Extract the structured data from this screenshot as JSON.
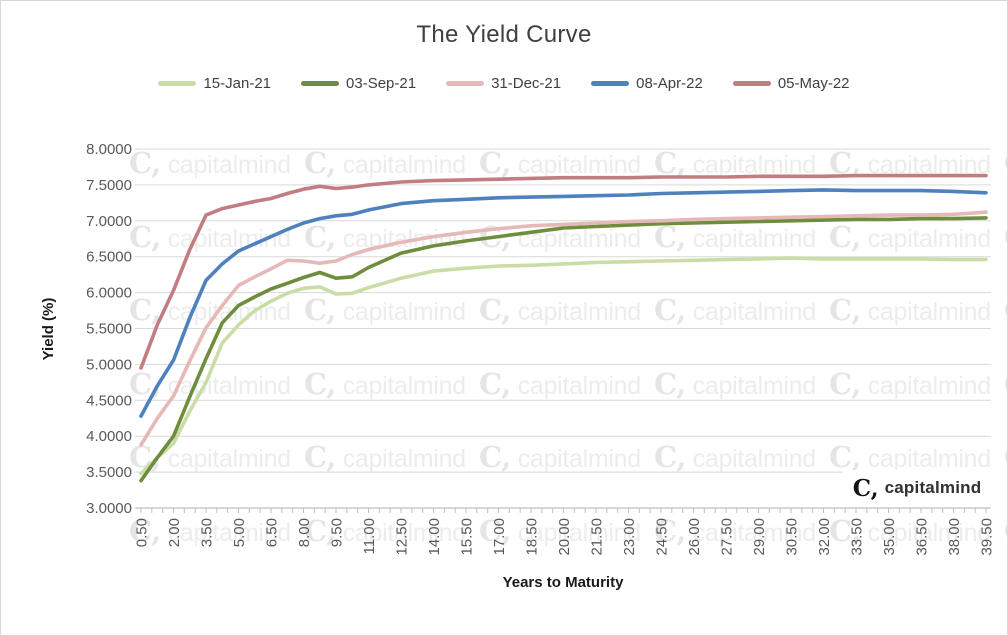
{
  "chart_data": {
    "type": "line",
    "title": "The Yield Curve",
    "xlabel": "Years to Maturity",
    "ylabel": "Yield (%)",
    "xlim": [
      0.5,
      39.5
    ],
    "ylim": [
      3.0,
      8.0
    ],
    "grid": "horizontal",
    "legend_position": "top",
    "grid_color": "#d9d9d9",
    "axis_line_color": "#bfbfbf",
    "tick_label_color": "#595959",
    "y_tick_labels": [
      "8.0000",
      "7.5000",
      "7.0000",
      "6.5000",
      "6.0000",
      "5.5000",
      "5.0000",
      "4.5000",
      "4.0000",
      "3.5000",
      "3.0000"
    ],
    "y_tick_values": [
      8.0,
      7.5,
      7.0,
      6.5,
      6.0,
      5.5,
      5.0,
      4.5,
      4.0,
      3.5,
      3.0
    ],
    "x_tick_labels": [
      "0.50",
      "2.00",
      "3.50",
      "5.00",
      "6.50",
      "8.00",
      "9.50",
      "11.00",
      "12.50",
      "14.00",
      "15.50",
      "17.00",
      "18.50",
      "20.00",
      "21.50",
      "23.00",
      "24.50",
      "26.00",
      "27.50",
      "29.00",
      "30.50",
      "32.00",
      "33.50",
      "35.00",
      "36.50",
      "38.00",
      "39.50"
    ],
    "x_tick_values": [
      0.5,
      2,
      3.5,
      5,
      6.5,
      8,
      9.5,
      11,
      12.5,
      14,
      15.5,
      17,
      18.5,
      20,
      21.5,
      23,
      24.5,
      26,
      27.5,
      29,
      30.5,
      32,
      33.5,
      35,
      36.5,
      38,
      39.5
    ],
    "x": [
      0.5,
      1.25,
      2,
      2.75,
      3.5,
      4.25,
      5,
      5.75,
      6.5,
      7.25,
      8,
      8.75,
      9.5,
      10.25,
      11,
      12.5,
      14,
      15.5,
      17,
      18.5,
      20,
      21.5,
      23,
      24.5,
      26,
      27.5,
      29,
      30.5,
      32,
      33.5,
      35,
      36.5,
      38,
      39.5
    ],
    "series": [
      {
        "name": "15-Jan-21",
        "color": "#cbdda6",
        "values": [
          3.48,
          3.7,
          3.9,
          4.35,
          4.75,
          5.3,
          5.55,
          5.75,
          5.88,
          5.99,
          6.06,
          6.08,
          5.98,
          5.99,
          6.07,
          6.2,
          6.3,
          6.34,
          6.37,
          6.38,
          6.4,
          6.42,
          6.43,
          6.44,
          6.45,
          6.46,
          6.47,
          6.48,
          6.47,
          6.47,
          6.47,
          6.47,
          6.46,
          6.46
        ]
      },
      {
        "name": "03-Sep-21",
        "color": "#6f8e3d",
        "values": [
          3.38,
          3.7,
          4.0,
          4.55,
          5.08,
          5.58,
          5.82,
          5.94,
          6.05,
          6.13,
          6.21,
          6.28,
          6.2,
          6.22,
          6.35,
          6.55,
          6.65,
          6.72,
          6.78,
          6.84,
          6.9,
          6.92,
          6.94,
          6.96,
          6.97,
          6.98,
          6.99,
          7.0,
          7.01,
          7.02,
          7.02,
          7.03,
          7.03,
          7.04
        ]
      },
      {
        "name": "31-Dec-21",
        "color": "#e7b8b8",
        "values": [
          3.88,
          4.25,
          4.56,
          5.05,
          5.51,
          5.82,
          6.1,
          6.22,
          6.33,
          6.45,
          6.44,
          6.41,
          6.44,
          6.53,
          6.6,
          6.7,
          6.78,
          6.84,
          6.89,
          6.93,
          6.95,
          6.97,
          6.99,
          7.0,
          7.02,
          7.03,
          7.04,
          7.05,
          7.06,
          7.07,
          7.08,
          7.08,
          7.09,
          7.12
        ]
      },
      {
        "name": "08-Apr-22",
        "color": "#4e81bd",
        "values": [
          4.28,
          4.7,
          5.06,
          5.65,
          6.17,
          6.4,
          6.58,
          6.68,
          6.78,
          6.88,
          6.97,
          7.03,
          7.07,
          7.09,
          7.15,
          7.24,
          7.28,
          7.3,
          7.32,
          7.33,
          7.34,
          7.35,
          7.36,
          7.38,
          7.39,
          7.4,
          7.41,
          7.42,
          7.43,
          7.42,
          7.42,
          7.42,
          7.41,
          7.39
        ]
      },
      {
        "name": "05-May-22",
        "color": "#c17d80",
        "values": [
          4.95,
          5.55,
          6.03,
          6.6,
          7.08,
          7.17,
          7.22,
          7.27,
          7.31,
          7.38,
          7.44,
          7.48,
          7.45,
          7.47,
          7.5,
          7.54,
          7.56,
          7.57,
          7.58,
          7.59,
          7.6,
          7.6,
          7.6,
          7.61,
          7.61,
          7.61,
          7.62,
          7.62,
          7.62,
          7.63,
          7.63,
          7.63,
          7.63,
          7.63
        ]
      }
    ]
  },
  "watermark": {
    "glyph": "C,",
    "text": "capitalmind"
  },
  "branding": {
    "logo_glyph": "C,",
    "logo_text": "capitalmind"
  }
}
